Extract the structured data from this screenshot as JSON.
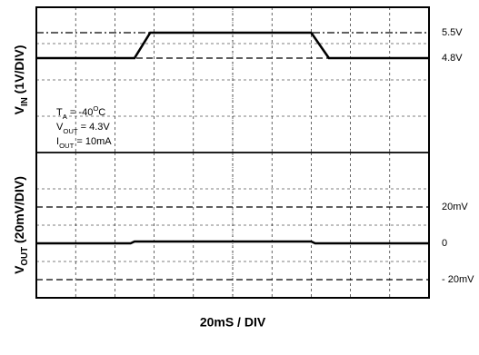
{
  "chart_data": [
    {
      "type": "line",
      "y_label": [
        "V",
        "IN",
        " (1V/DIV)"
      ],
      "annotations": [
        [
          "T",
          "A",
          " = -40",
          "O",
          "C"
        ],
        [
          "V",
          "OUT",
          " = 4.3V"
        ],
        [
          "I",
          "OUT",
          " = 10mA"
        ]
      ],
      "xlim": [
        0,
        200
      ],
      "xticks": [
        0,
        20,
        40,
        60,
        80,
        100,
        120,
        140,
        160,
        180,
        200
      ],
      "ylim": [
        2.2,
        6.2
      ],
      "yticks": [
        2.2,
        3.2,
        4.2,
        5.2,
        6.2
      ],
      "grid": true,
      "series": [
        {
          "color": "#000000",
          "x": [
            0,
            50,
            58,
            140,
            149,
            200
          ],
          "values": [
            4.8,
            4.8,
            5.5,
            5.5,
            4.8,
            4.8
          ]
        }
      ],
      "ref_lines": [
        {
          "value": 5.5,
          "label": "5.5V",
          "style": "dashdot"
        },
        {
          "value": 4.8,
          "label": "4.8V",
          "style": "dashed"
        }
      ]
    },
    {
      "type": "line",
      "y_label": [
        "V",
        "OUT",
        " (20mV/DIV)"
      ],
      "x_label": "20mS / DIV",
      "xlim": [
        0,
        200
      ],
      "xticks": [
        0,
        20,
        40,
        60,
        80,
        100,
        120,
        140,
        160,
        180,
        200
      ],
      "ylim": [
        -30,
        50
      ],
      "yticks": [
        -30,
        -10,
        10,
        30,
        50
      ],
      "grid": true,
      "series": [
        {
          "color": "#000000",
          "x": [
            0,
            48,
            50,
            140,
            142,
            200
          ],
          "values": [
            0,
            0,
            1,
            1,
            0,
            0
          ]
        }
      ],
      "ref_lines": [
        {
          "value": 20,
          "label": "20mV",
          "style": "dashed"
        },
        {
          "value": 0,
          "label": "0",
          "style": "none"
        },
        {
          "value": -20,
          "label": "- 20mV",
          "style": "dashed"
        }
      ]
    }
  ]
}
